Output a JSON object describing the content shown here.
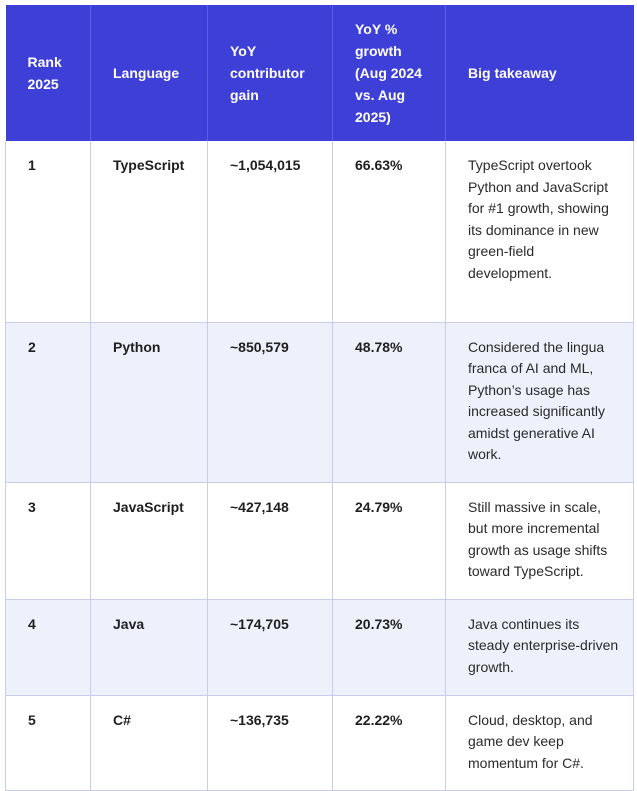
{
  "table": {
    "headers": {
      "rank": "Rank 2025",
      "language": "Language",
      "gain": "YoY contributor gain",
      "growth": "YoY % growth (Aug 2024 vs. Aug 2025)",
      "takeaway": "Big takeaway"
    },
    "rows": [
      {
        "rank": "1",
        "language": "TypeScript",
        "gain": "~1,054,015",
        "growth": "66.63%",
        "takeaway": "TypeScript overtook Python and JavaScript for #1 growth, showing its dominance in new green-field development."
      },
      {
        "rank": "2",
        "language": "Python",
        "gain": "~850,579",
        "growth": "48.78%",
        "takeaway": "Considered the lingua franca of AI and ML, Python’s usage has increased significantly amidst generative AI work."
      },
      {
        "rank": "3",
        "language": "JavaScript",
        "gain": "~427,148",
        "growth": "24.79%",
        "takeaway": "Still massive in scale, but more incremental growth as usage shifts toward TypeScript."
      },
      {
        "rank": "4",
        "language": "Java",
        "gain": "~174,705",
        "growth": "20.73%",
        "takeaway": "Java continues its steady enterprise-driven growth."
      },
      {
        "rank": "5",
        "language": "C#",
        "gain": "~136,735",
        "growth": "22.22%",
        "takeaway": "Cloud, desktop, and game dev keep momentum for C#."
      }
    ]
  },
  "colors": {
    "header_bg": "#3e3fd6",
    "header_text": "#ffffff",
    "stripe_bg": "#eef0fb",
    "border": "#c9cdea"
  }
}
